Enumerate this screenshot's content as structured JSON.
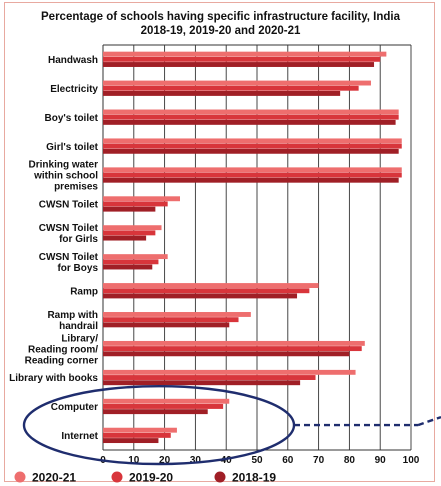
{
  "chart_data": {
    "type": "bar",
    "orientation": "horizontal",
    "title_line1": "Percentage of schools having specific infrastructure facility, India",
    "title_line2": "2018-19, 2019-20 and 2020-21",
    "categories": [
      [
        "Handwash"
      ],
      [
        "Electricity"
      ],
      [
        "Boy's toilet"
      ],
      [
        "Girl's toilet"
      ],
      [
        "Drinking water",
        "within school",
        "premises"
      ],
      [
        "CWSN Toilet"
      ],
      [
        "CWSN Toilet",
        "for Girls"
      ],
      [
        "CWSN Toilet",
        "for Boys"
      ],
      [
        "Ramp"
      ],
      [
        "Ramp with",
        "handrail"
      ],
      [
        "Library/",
        "Reading room/",
        "Reading corner"
      ],
      [
        "Library with books"
      ],
      [
        "Computer"
      ],
      [
        "Internet"
      ]
    ],
    "series": [
      {
        "name": "2020-21",
        "color": "#ee6e6e",
        "values": [
          92,
          87,
          96,
          97,
          97,
          25,
          19,
          21,
          70,
          48,
          85,
          82,
          41,
          24
        ]
      },
      {
        "name": "2019-20",
        "color": "#d8353b",
        "values": [
          90,
          83,
          96,
          97,
          97,
          21,
          17,
          18,
          67,
          44,
          84,
          69,
          39,
          22
        ]
      },
      {
        "name": "2018-19",
        "color": "#a01f26",
        "values": [
          88,
          77,
          95,
          96,
          96,
          17,
          14,
          16,
          63,
          41,
          80,
          64,
          34,
          18
        ]
      }
    ],
    "xlim": [
      0,
      100
    ],
    "xticks": [
      0,
      10,
      20,
      30,
      40,
      50,
      60,
      70,
      80,
      90,
      100
    ],
    "grid": true,
    "legend": "bottom",
    "highlight": [
      "Computer",
      "Internet"
    ]
  }
}
